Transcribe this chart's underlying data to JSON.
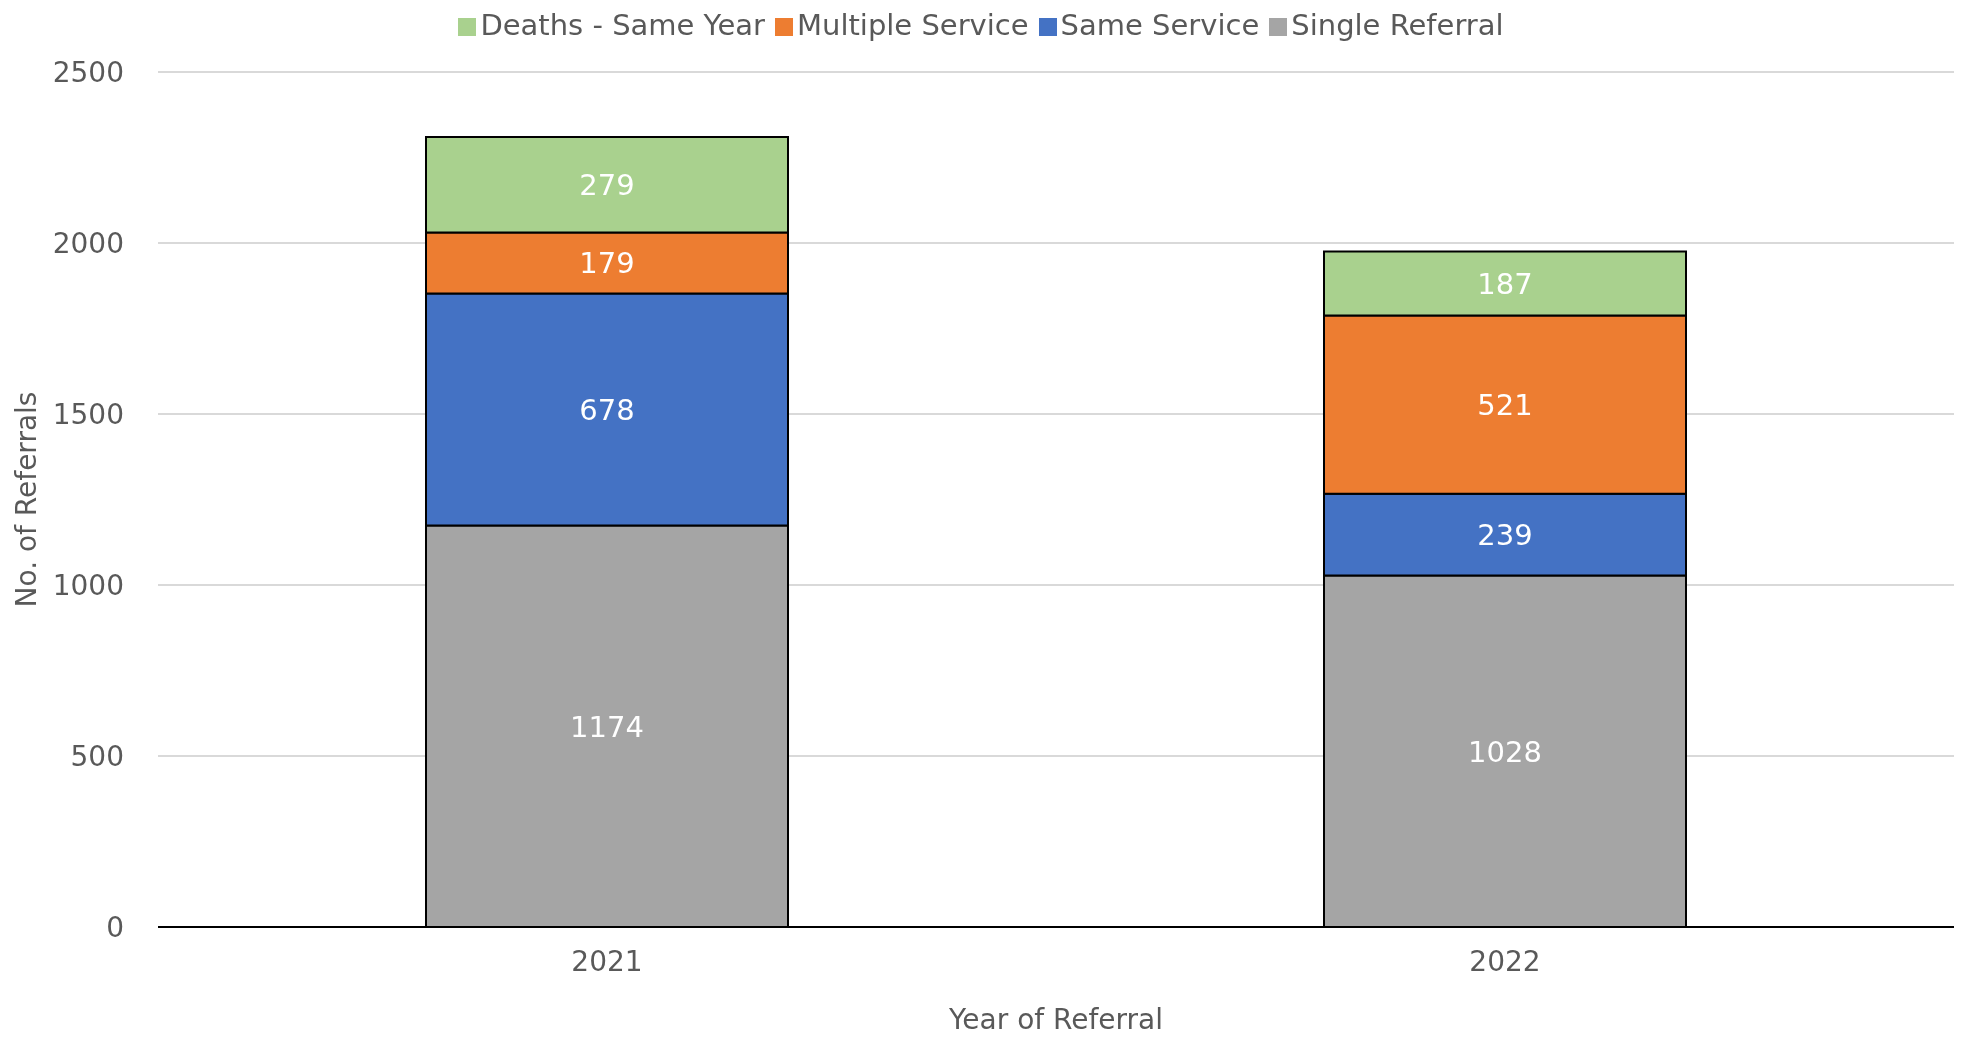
{
  "chart_data": {
    "type": "bar",
    "stacked": true,
    "xlabel": "Year of Referral",
    "ylabel": "No. of Referrals",
    "categories": [
      "2021",
      "2022"
    ],
    "series": [
      {
        "name": "Single Referral",
        "color": "#a5a5a5",
        "values": [
          1174,
          1028
        ]
      },
      {
        "name": "Same Service",
        "color": "#4472c4",
        "values": [
          678,
          239
        ]
      },
      {
        "name": "Multiple Service",
        "color": "#ed7d31",
        "values": [
          179,
          521
        ]
      },
      {
        "name": "Deaths - Same Year",
        "color": "#a9d18e",
        "values": [
          279,
          187
        ]
      }
    ],
    "ylim": [
      0,
      2500
    ],
    "yticks": [
      0,
      500,
      1000,
      1500,
      2000,
      2500
    ],
    "grid": "y",
    "legend": "top",
    "data_labels": true
  }
}
